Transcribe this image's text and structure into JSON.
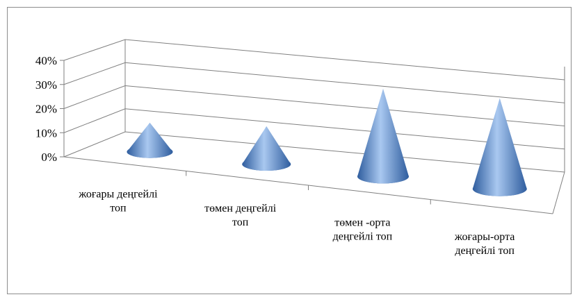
{
  "chart_data": {
    "type": "bar",
    "style": "3d-cone",
    "categories": [
      [
        "жоғары деңгейлі",
        "топ"
      ],
      [
        "төмен деңгейлі",
        "топ"
      ],
      [
        "төмен -орта",
        "деңгейлі топ"
      ],
      [
        "жоғары-орта",
        "деңгейлі топ"
      ]
    ],
    "values": [
      14,
      17,
      37,
      36
    ],
    "ylim": [
      0,
      40
    ],
    "y_ticks": [
      "0%",
      "10%",
      "20%",
      "30%",
      "40%"
    ],
    "y_tick_values": [
      0,
      10,
      20,
      30,
      40
    ],
    "grid": true,
    "legend": "none",
    "colors": {
      "cone_dark": "#2f5d9e",
      "cone_mid": "#5b8fd6",
      "cone_light": "#a9c8f0",
      "grid": "#7f7f7f"
    }
  }
}
